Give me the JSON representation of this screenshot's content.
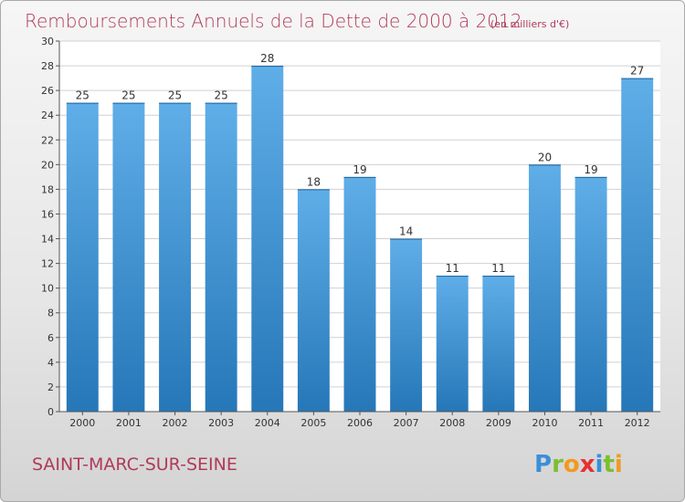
{
  "title": "Remboursements Annuels de la Dette de 2000 à 2012",
  "subtitle": "(en milliers d'€)",
  "footer": {
    "city": "SAINT-MARC-SUR-SEINE",
    "logo": [
      {
        "ch": "P",
        "color": "#3a8fd8"
      },
      {
        "ch": "r",
        "color": "#7cbf2f"
      },
      {
        "ch": "o",
        "color": "#f29a1e"
      },
      {
        "ch": "x",
        "color": "#e6312f"
      },
      {
        "ch": "i",
        "color": "#3a8fd8"
      },
      {
        "ch": "t",
        "color": "#7cbf2f"
      },
      {
        "ch": "i",
        "color": "#f29a1e"
      }
    ]
  },
  "colors": {
    "bar_top": "#5faee8",
    "bar_bottom": "#2677b8",
    "grid": "#d0d0d0"
  },
  "chart_data": {
    "type": "bar",
    "categories": [
      "2000",
      "2001",
      "2002",
      "2003",
      "2004",
      "2005",
      "2006",
      "2007",
      "2008",
      "2009",
      "2010",
      "2011",
      "2012"
    ],
    "values": [
      25,
      25,
      25,
      25,
      28,
      18,
      19,
      14,
      11,
      11,
      20,
      19,
      27
    ],
    "title": "Remboursements Annuels de la Dette de 2000 à 2012",
    "ylim": [
      0,
      30
    ],
    "yticks": [
      0,
      2,
      4,
      6,
      8,
      10,
      12,
      14,
      16,
      18,
      20,
      22,
      24,
      26,
      28,
      30
    ],
    "grid": true,
    "data_labels": true
  }
}
